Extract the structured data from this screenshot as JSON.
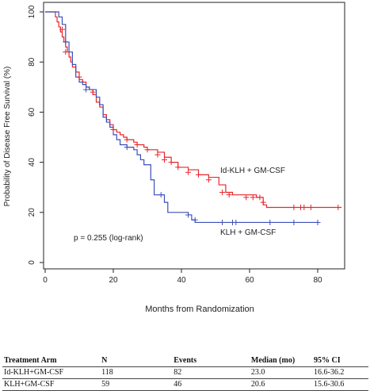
{
  "chart_data": {
    "type": "line",
    "title": "",
    "xlabel": "Months from Randomization",
    "ylabel": "Probability of Disease Free Survival (%)",
    "xlim": [
      0,
      88
    ],
    "ylim": [
      0,
      100
    ],
    "x_ticks": [
      "0",
      "20",
      "40",
      "60",
      "80"
    ],
    "y_ticks": [
      "0",
      "20",
      "40",
      "60",
      "80",
      "100"
    ],
    "grid": false,
    "annotation": "p = 0.255 (log-rank)",
    "series": [
      {
        "name": "Id-KLH + GM-CSF",
        "color": "#e8262b",
        "steps": [
          [
            0,
            100
          ],
          [
            3,
            98
          ],
          [
            3.5,
            96
          ],
          [
            4,
            94
          ],
          [
            4.5,
            92
          ],
          [
            5,
            90
          ],
          [
            5.5,
            88
          ],
          [
            6,
            86
          ],
          [
            6.5,
            84
          ],
          [
            7,
            82
          ],
          [
            7.5,
            80
          ],
          [
            8,
            78
          ],
          [
            9,
            76
          ],
          [
            10,
            73
          ],
          [
            11,
            72
          ],
          [
            12,
            70
          ],
          [
            13,
            69
          ],
          [
            14,
            67
          ],
          [
            15,
            64
          ],
          [
            16,
            62
          ],
          [
            17,
            59
          ],
          [
            18,
            57
          ],
          [
            19,
            55
          ],
          [
            20,
            53
          ],
          [
            21,
            52
          ],
          [
            22,
            51
          ],
          [
            23,
            50
          ],
          [
            24,
            49
          ],
          [
            26,
            48
          ],
          [
            27,
            47
          ],
          [
            29,
            46
          ],
          [
            30,
            45
          ],
          [
            33,
            44
          ],
          [
            35,
            42
          ],
          [
            37,
            40
          ],
          [
            39,
            38
          ],
          [
            42,
            37
          ],
          [
            45,
            35
          ],
          [
            48,
            34
          ],
          [
            51,
            31
          ],
          [
            53,
            28
          ],
          [
            55,
            27
          ],
          [
            60,
            27
          ],
          [
            62,
            26
          ],
          [
            64,
            23
          ],
          [
            65,
            22
          ],
          [
            87,
            22
          ]
        ],
        "censors": [
          [
            5,
            93
          ],
          [
            6,
            84
          ],
          [
            10,
            74
          ],
          [
            14,
            68
          ],
          [
            20,
            53
          ],
          [
            24,
            49
          ],
          [
            27,
            47
          ],
          [
            30,
            45
          ],
          [
            33,
            43
          ],
          [
            35,
            41
          ],
          [
            37,
            40
          ],
          [
            39,
            38
          ],
          [
            42,
            36
          ],
          [
            45,
            35
          ],
          [
            48,
            33
          ],
          [
            52,
            28
          ],
          [
            54,
            27
          ],
          [
            59,
            26
          ],
          [
            61,
            26
          ],
          [
            63,
            26
          ],
          [
            64,
            24
          ],
          [
            73,
            22
          ],
          [
            75,
            22
          ],
          [
            76,
            22
          ],
          [
            78,
            22
          ],
          [
            86,
            22
          ]
        ],
        "label": "Id-KLH + GM-CSF"
      },
      {
        "name": "KLH + GM-CSF",
        "color": "#3b4fb8",
        "steps": [
          [
            0,
            100
          ],
          [
            4,
            98
          ],
          [
            5,
            95
          ],
          [
            6,
            88
          ],
          [
            7,
            84
          ],
          [
            8,
            79
          ],
          [
            9,
            74
          ],
          [
            10,
            72
          ],
          [
            11,
            71
          ],
          [
            12,
            70
          ],
          [
            13,
            69
          ],
          [
            15,
            66
          ],
          [
            16,
            63
          ],
          [
            17,
            58
          ],
          [
            18,
            56
          ],
          [
            19,
            54
          ],
          [
            20,
            51
          ],
          [
            21,
            49
          ],
          [
            22,
            47
          ],
          [
            24,
            46
          ],
          [
            26,
            45
          ],
          [
            27,
            43
          ],
          [
            28,
            41
          ],
          [
            29,
            39
          ],
          [
            31,
            33
          ],
          [
            32,
            27
          ],
          [
            35,
            24
          ],
          [
            36,
            20
          ],
          [
            42,
            19
          ],
          [
            43,
            17
          ],
          [
            44,
            16
          ],
          [
            80,
            16
          ]
        ],
        "censors": [
          [
            6,
            88
          ],
          [
            12,
            69
          ],
          [
            24,
            46
          ],
          [
            34,
            27
          ],
          [
            42,
            19
          ],
          [
            44,
            17
          ],
          [
            52,
            16
          ],
          [
            55,
            16
          ],
          [
            56,
            16
          ],
          [
            66,
            16
          ],
          [
            73,
            16
          ],
          [
            80,
            16
          ]
        ],
        "label": "KLH + GM-CSF"
      }
    ]
  },
  "table": {
    "headers": [
      "Treatment Arm",
      "N",
      "Events",
      "Median (mo)",
      "95% CI"
    ],
    "rows": [
      [
        "Id-KLH+GM-CSF",
        "118",
        "82",
        "23.0",
        "16.6-36.2"
      ],
      [
        "KLH+GM-CSF",
        "59",
        "46",
        "20.6",
        "15.6-30.6"
      ]
    ]
  }
}
